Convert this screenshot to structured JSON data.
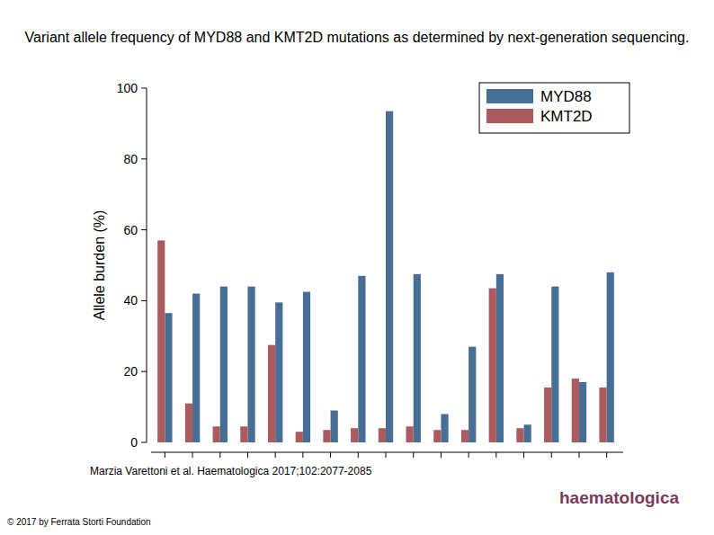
{
  "chart_data": {
    "type": "bar",
    "title": "Variant allele frequency of MYD88 and KMT2D mutations as determined by next-generation sequencing.",
    "ylabel": "Allele burden (%)",
    "categories": [
      null,
      null,
      null,
      null,
      null,
      null,
      null,
      null,
      null,
      null,
      null,
      null,
      null,
      null,
      null,
      null,
      null
    ],
    "series": [
      {
        "name": "MYD88",
        "color": "#476f95",
        "values": [
          36.5,
          42,
          44,
          44,
          39.5,
          42.5,
          9,
          47,
          93.5,
          47.5,
          8,
          27,
          47.5,
          5,
          44,
          17,
          48
        ]
      },
      {
        "name": "KMT2D",
        "color": "#ab5a5d",
        "values": [
          57,
          11,
          4.5,
          4.5,
          27.5,
          3,
          3.5,
          4,
          4,
          4.5,
          3.5,
          3.5,
          43.5,
          4,
          15.5,
          18,
          15.5
        ]
      }
    ],
    "ylim": [
      0,
      100
    ],
    "yticks": [
      0,
      20,
      40,
      60,
      80,
      100
    ],
    "grid": false,
    "legend": "top-right",
    "tick_labels": "y"
  },
  "footer": {
    "citation": "Marzia Varettoni et al. Haematologica 2017;102:2077-2085",
    "copyright": "© 2017 by Ferrata Storti Foundation",
    "logo": "haematologica"
  }
}
